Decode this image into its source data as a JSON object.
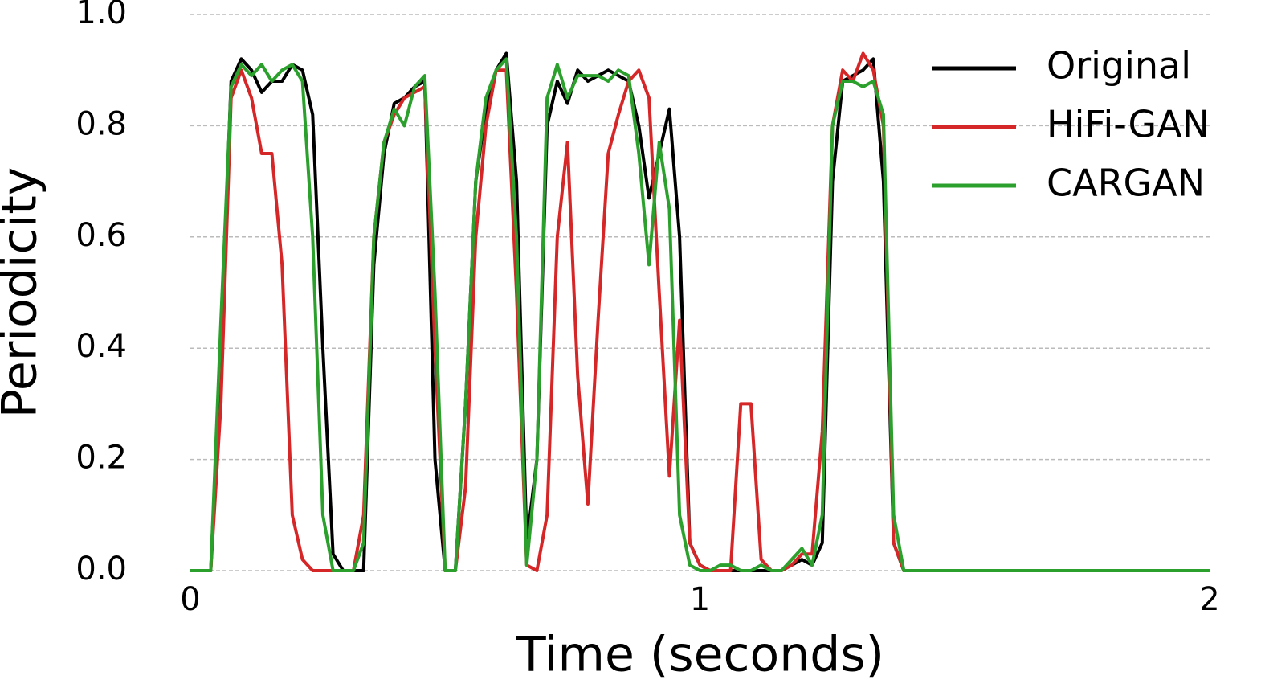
{
  "chart_data": {
    "type": "line",
    "xlabel": "Time (seconds)",
    "ylabel": "Periodicity",
    "x": [
      0,
      0.02,
      0.04,
      0.06,
      0.08,
      0.1,
      0.12,
      0.14,
      0.16,
      0.18,
      0.2,
      0.22,
      0.24,
      0.26,
      0.28,
      0.3,
      0.32,
      0.34,
      0.36,
      0.38,
      0.4,
      0.42,
      0.44,
      0.46,
      0.48,
      0.5,
      0.52,
      0.54,
      0.56,
      0.58,
      0.6,
      0.62,
      0.64,
      0.66,
      0.68,
      0.7,
      0.72,
      0.74,
      0.76,
      0.78,
      0.8,
      0.82,
      0.84,
      0.86,
      0.88,
      0.9,
      0.92,
      0.94,
      0.96,
      0.98,
      1.0,
      1.02,
      1.04,
      1.06,
      1.08,
      1.1,
      1.12,
      1.14,
      1.16,
      1.18,
      1.2,
      1.22,
      1.24,
      1.26,
      1.28,
      1.3,
      1.32,
      1.34,
      1.36,
      1.38,
      1.4,
      1.42,
      2
    ],
    "series": [
      {
        "name": "Original",
        "color": "#000000",
        "values": [
          0,
          0,
          0,
          0.4,
          0.88,
          0.92,
          0.9,
          0.86,
          0.88,
          0.88,
          0.91,
          0.9,
          0.82,
          0.4,
          0.03,
          0,
          0,
          0,
          0.55,
          0.75,
          0.84,
          0.85,
          0.87,
          0.88,
          0.2,
          0,
          0,
          0.3,
          0.7,
          0.83,
          0.9,
          0.93,
          0.7,
          0.05,
          0.2,
          0.8,
          0.88,
          0.84,
          0.9,
          0.88,
          0.89,
          0.9,
          0.89,
          0.88,
          0.8,
          0.67,
          0.75,
          0.83,
          0.6,
          0.05,
          0.01,
          0,
          0,
          0,
          0,
          0,
          0,
          0,
          0,
          0.01,
          0.02,
          0.01,
          0.05,
          0.7,
          0.88,
          0.89,
          0.9,
          0.92,
          0.7,
          0.05,
          0,
          0,
          0
        ]
      },
      {
        "name": "HiFi-GAN",
        "color": "#d62728",
        "values": [
          0,
          0,
          0,
          0.3,
          0.85,
          0.9,
          0.85,
          0.75,
          0.75,
          0.55,
          0.1,
          0.02,
          0,
          0,
          0,
          0,
          0,
          0.1,
          0.6,
          0.77,
          0.82,
          0.85,
          0.86,
          0.87,
          0.4,
          0,
          0,
          0.15,
          0.6,
          0.8,
          0.9,
          0.9,
          0.5,
          0.01,
          0,
          0.1,
          0.6,
          0.77,
          0.35,
          0.12,
          0.45,
          0.75,
          0.82,
          0.88,
          0.9,
          0.85,
          0.5,
          0.17,
          0.45,
          0.05,
          0.01,
          0,
          0,
          0,
          0.3,
          0.3,
          0.02,
          0,
          0,
          0.01,
          0.03,
          0.03,
          0.25,
          0.8,
          0.9,
          0.88,
          0.93,
          0.9,
          0.8,
          0.05,
          0,
          0,
          0
        ]
      },
      {
        "name": "CARGAN",
        "color": "#2ca02c",
        "values": [
          0,
          0,
          0,
          0.45,
          0.87,
          0.91,
          0.89,
          0.91,
          0.88,
          0.9,
          0.91,
          0.88,
          0.6,
          0.1,
          0,
          0,
          0,
          0.05,
          0.6,
          0.77,
          0.83,
          0.8,
          0.87,
          0.89,
          0.5,
          0,
          0,
          0.3,
          0.7,
          0.85,
          0.9,
          0.92,
          0.6,
          0.01,
          0.2,
          0.85,
          0.91,
          0.85,
          0.89,
          0.89,
          0.89,
          0.88,
          0.9,
          0.89,
          0.75,
          0.55,
          0.77,
          0.65,
          0.1,
          0.01,
          0,
          0,
          0.01,
          0.01,
          0,
          0,
          0.01,
          0,
          0,
          0.02,
          0.04,
          0.01,
          0.1,
          0.8,
          0.88,
          0.88,
          0.87,
          0.88,
          0.82,
          0.1,
          0,
          0,
          0
        ]
      }
    ],
    "xlim": [
      0,
      2
    ],
    "xticks": [
      0,
      1,
      2
    ],
    "ylim": [
      0,
      1
    ],
    "yticks": [
      {
        "value": 0,
        "label": "0.0"
      },
      0.2,
      0.4,
      0.6,
      0.8,
      {
        "value": 1,
        "label": "1.0"
      }
    ],
    "grid": true,
    "legend": "upper right"
  }
}
